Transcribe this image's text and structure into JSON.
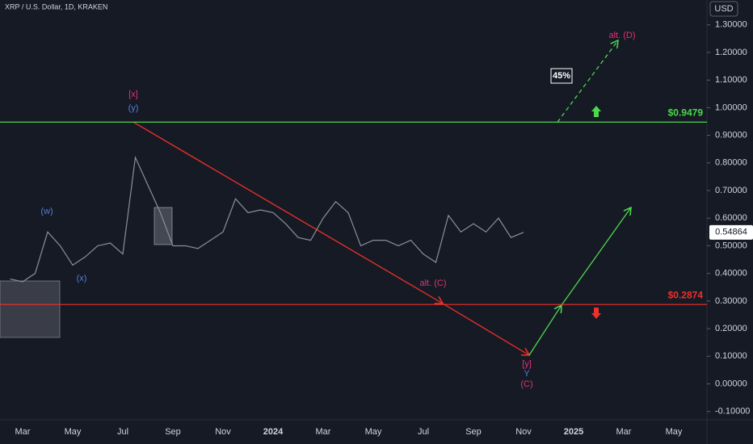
{
  "chart_data": {
    "type": "line",
    "title": "XRP / U.S. Dollar, 1D, KRAKEN",
    "currency": "USD",
    "color": "#8c8f98",
    "categories": [
      null,
      "Mar",
      null,
      null,
      null,
      "May",
      null,
      null,
      null,
      "Jul",
      null,
      null,
      null,
      "Sep",
      null,
      null,
      null,
      "Nov",
      null,
      null,
      null,
      "2024",
      null,
      null,
      null,
      "Mar",
      null,
      null,
      null,
      "May",
      null,
      null,
      null,
      "Jul",
      null,
      null,
      null,
      "Sep",
      null,
      null,
      null,
      "Nov",
      null,
      null,
      null,
      "2025",
      null,
      null,
      null,
      "Mar",
      null,
      null,
      null,
      "May",
      null,
      null
    ],
    "values": [
      0.38,
      0.37,
      0.4,
      0.55,
      0.5,
      0.43,
      0.46,
      0.5,
      0.51,
      0.47,
      0.82,
      0.72,
      0.62,
      0.5,
      0.5,
      0.49,
      0.52,
      0.55,
      0.67,
      0.62,
      0.63,
      0.62,
      0.58,
      0.53,
      0.52,
      0.6,
      0.66,
      0.62,
      0.5,
      0.52,
      0.52,
      0.5,
      0.52,
      0.47,
      0.44,
      0.61,
      0.55,
      0.58,
      0.55,
      0.6,
      0.53,
      0.54864,
      null,
      null,
      null,
      null,
      null,
      null,
      null,
      null,
      null,
      null,
      null,
      null,
      null,
      null
    ],
    "last_price": 0.54864,
    "ylim": [
      -0.13,
      1.39
    ],
    "yticks": [
      {
        "value": 1.3,
        "label": "1.30000"
      },
      {
        "value": 1.2,
        "label": "1.20000"
      },
      {
        "value": 1.1,
        "label": "1.10000"
      },
      {
        "value": 1.0,
        "label": "1.00000"
      },
      {
        "value": 0.9,
        "label": "0.90000"
      },
      {
        "value": 0.8,
        "label": "0.80000"
      },
      {
        "value": 0.7,
        "label": "0.70000"
      },
      {
        "value": 0.6,
        "label": "0.60000"
      },
      {
        "value": 0.5,
        "label": "0.50000"
      },
      {
        "value": 0.4,
        "label": "0.40000"
      },
      {
        "value": 0.3,
        "label": "0.30000"
      },
      {
        "value": 0.2,
        "label": "0.20000"
      },
      {
        "value": 0.1,
        "label": "0.10000"
      },
      {
        "value": 0,
        "label": "0.00000"
      },
      {
        "value": -0.1,
        "label": "-0.10000"
      }
    ],
    "levels": [
      {
        "value": 0.9479,
        "label": "$0.9479",
        "color": "#4cd84c"
      },
      {
        "value": 0.2874,
        "label": "$0.2874",
        "color": "#f0302a"
      }
    ],
    "annotations": [
      {
        "text": "[x]",
        "color": "#e0336f"
      },
      {
        "text": "(y)",
        "color": "#4f7fd8"
      },
      {
        "text": "(w)",
        "color": "#4f7fd8"
      },
      {
        "text": "(x)",
        "color": "#4f7fd8"
      },
      {
        "text": "alt. (C)",
        "color": "#e0336f"
      },
      {
        "text": "[y]",
        "color": "#e0336f"
      },
      {
        "text": "Y",
        "color": "#4f7fd8"
      },
      {
        "text": "(C)",
        "color": "#e0336f"
      },
      {
        "text": "alt. (D)",
        "color": "#e0336f"
      },
      {
        "text": "45%",
        "color": "#ffffff"
      }
    ]
  }
}
